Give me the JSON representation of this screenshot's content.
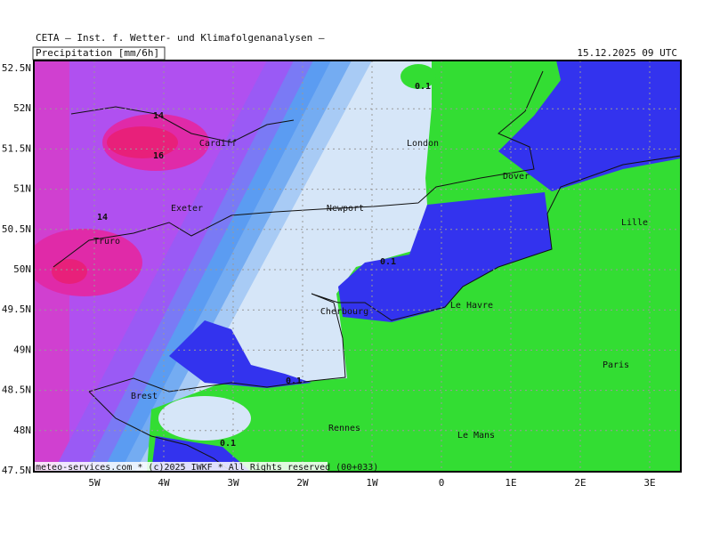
{
  "header": {
    "title": "CETA – Inst. f. Wetter- und Klimafolgenanalysen –",
    "field": "Precipitation [mm/6h]",
    "valid_time": "15.12.2025 09 UTC"
  },
  "axes": {
    "latitudes": [
      "52.5N",
      "52N",
      "51.5N",
      "51N",
      "50.5N",
      "50N",
      "49.5N",
      "49N",
      "48.5N",
      "48N",
      "47.5N"
    ],
    "longitudes": [
      "5W",
      "4W",
      "3W",
      "2W",
      "1W",
      "0",
      "1E",
      "2E",
      "3E"
    ]
  },
  "places": [
    "Cardiff",
    "London",
    "Dover",
    "Exeter",
    "Newport",
    "Truro",
    "Lille",
    "Cherbourg",
    "Le Havre",
    "Brest",
    "Paris",
    "Rennes",
    "Le Mans"
  ],
  "contour_labels": [
    14,
    16,
    14,
    0.1,
    0.1,
    0.1,
    0.1
  ],
  "footer": "meteo-services.com * (c)2025 IWKF * All Rights reserved (00+033)"
}
